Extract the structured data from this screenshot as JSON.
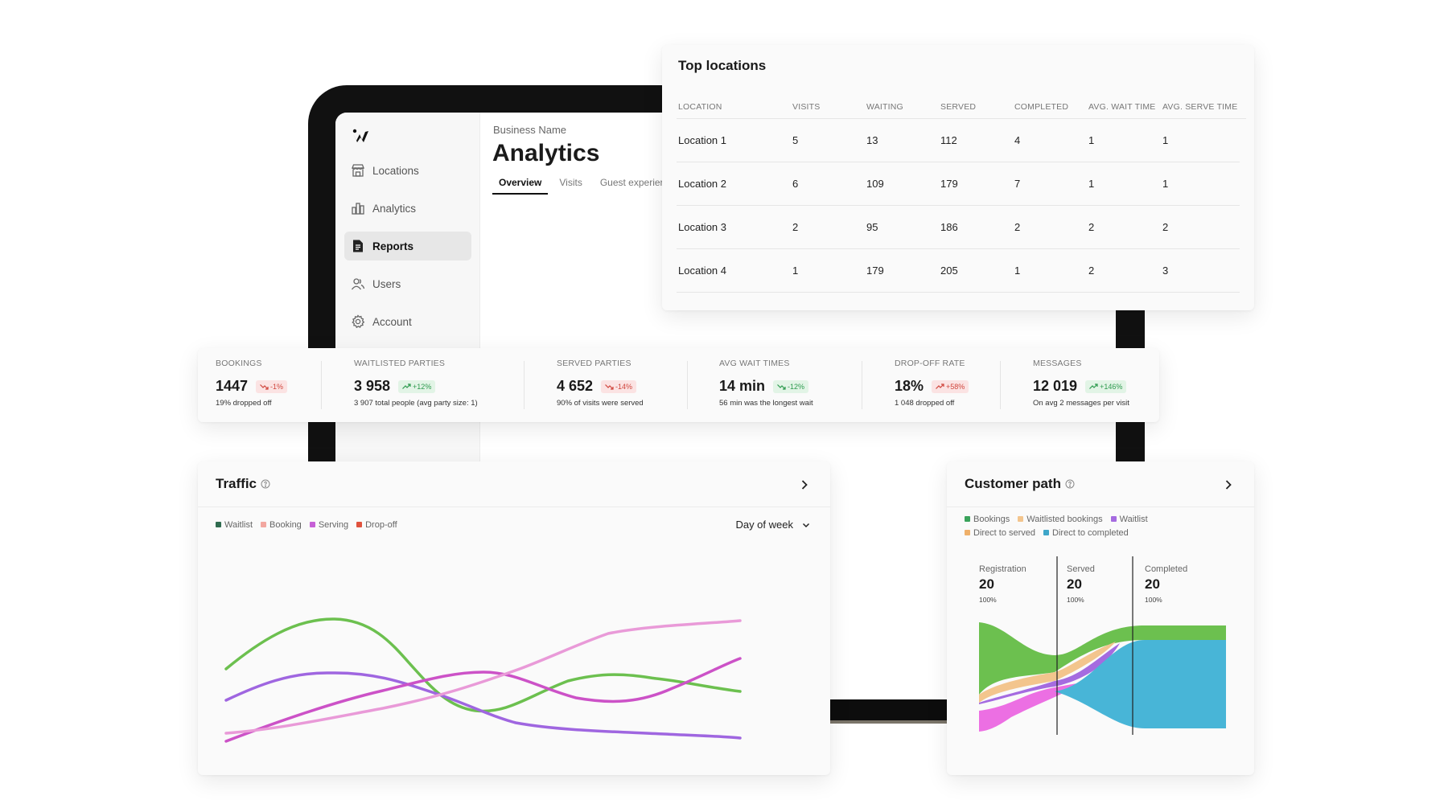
{
  "app": {
    "business_name": "Business Name",
    "page_title": "Analytics",
    "tabs": [
      {
        "label": "Overview",
        "active": true
      },
      {
        "label": "Visits",
        "active": false
      },
      {
        "label": "Guest experier",
        "active": false
      }
    ]
  },
  "sidebar": {
    "logo": "w-logo-icon",
    "items": [
      {
        "label": "Locations",
        "icon": "store-icon",
        "active": false
      },
      {
        "label": "Analytics",
        "icon": "bar-chart-icon",
        "active": false
      },
      {
        "label": "Reports",
        "icon": "document-icon",
        "active": true
      },
      {
        "label": "Users",
        "icon": "users-icon",
        "active": false
      },
      {
        "label": "Account",
        "icon": "gear-icon",
        "active": false
      }
    ]
  },
  "top_locations": {
    "title": "Top locations",
    "columns": [
      "LOCATION",
      "VISITS",
      "WAITING",
      "SERVED",
      "COMPLETED",
      "AVG. WAIT TIME",
      "AVG. SERVE TIME"
    ],
    "rows": [
      [
        "Location 1",
        "5",
        "13",
        "112",
        "4",
        "1",
        "1"
      ],
      [
        "Location 2",
        "6",
        "109",
        "179",
        "7",
        "1",
        "1"
      ],
      [
        "Location 3",
        "2",
        "95",
        "186",
        "2",
        "2",
        "2"
      ],
      [
        "Location 4",
        "1",
        "179",
        "205",
        "1",
        "2",
        "3"
      ]
    ]
  },
  "stats": [
    {
      "label": "BOOKINGS",
      "value": "1447",
      "change": "-1%",
      "trend": "down",
      "note": "19% dropped off"
    },
    {
      "label": "WAITLISTED PARTIES",
      "value": "3 958",
      "change": "+12%",
      "trend": "up",
      "note": "3 907 total people (avg party size: 1)"
    },
    {
      "label": "SERVED PARTIES",
      "value": "4 652",
      "change": "-14%",
      "trend": "down",
      "note": "90% of visits were served"
    },
    {
      "label": "AVG WAIT TIMES",
      "value": "14 min",
      "change": "-12%",
      "trend": "down-good",
      "note": "56 min was the longest wait"
    },
    {
      "label": "DROP-OFF RATE",
      "value": "18%",
      "change": "+58%",
      "trend": "up-bad",
      "note": "1 048 dropped off"
    },
    {
      "label": "MESSAGES",
      "value": "12 019",
      "change": "+146%",
      "trend": "up",
      "note": "On avg 2 messages per visit"
    }
  ],
  "colors": {
    "negative_bg": "#fbe3e3",
    "negative_fg": "#d0463d",
    "positive_bg": "#e2f4e6",
    "positive_fg": "#2d9a4e"
  },
  "traffic": {
    "title": "Traffic",
    "help_icon": "help-circle-icon",
    "open_icon": "chevron-right-icon",
    "dropdown_label": "Day of week",
    "legend": [
      {
        "name": "Waitlist",
        "color": "#2f6b4f"
      },
      {
        "name": "Booking",
        "color": "#f2a7a0"
      },
      {
        "name": "Serving",
        "color": "#c660d6"
      },
      {
        "name": "Drop-off",
        "color": "#e0523d"
      }
    ]
  },
  "customer_path": {
    "title": "Customer path",
    "help_icon": "help-circle-icon",
    "open_icon": "chevron-right-icon",
    "legend": [
      {
        "name": "Bookings",
        "color": "#3aa35b"
      },
      {
        "name": "Waitlisted bookings",
        "color": "#f3c58d"
      },
      {
        "name": "Waitlist",
        "color": "#a56be0"
      },
      {
        "name": "Direct to served",
        "color": "#efb06a"
      },
      {
        "name": "Direct to completed",
        "color": "#3ea6c9"
      }
    ],
    "stages": [
      {
        "label": "Registration",
        "value": "20",
        "percent": "100%"
      },
      {
        "label": "Served",
        "value": "20",
        "percent": "100%"
      },
      {
        "label": "Completed",
        "value": "20",
        "percent": "100%"
      }
    ]
  }
}
